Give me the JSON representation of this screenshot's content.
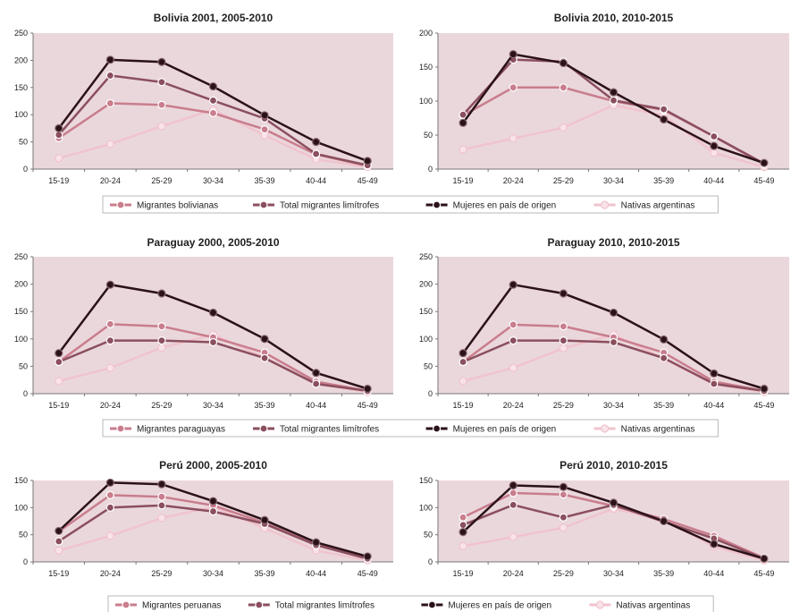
{
  "colors": {
    "plot_bg": "#ead7dc",
    "migrantes": "#c97d8d",
    "total": "#8b4f5e",
    "mujeres": "#2b1219",
    "nativas": "#f0c3cd"
  },
  "legends": {
    "bolivia": [
      "Migrantes bolivianas",
      "Total migrantes limítrofes",
      "Mujeres en país de origen",
      "Nativas argentinas"
    ],
    "paraguay": [
      "Migrantes paraguayas",
      "Total migrantes limítrofes",
      "Mujeres en país de origen",
      "Nativas argentinas"
    ],
    "peru": [
      "Migrantes peruanas",
      "Total migrantes limítrofes",
      "Mujeres en país de origen",
      "Nativas argentinas"
    ]
  },
  "chart_data": [
    {
      "type": "line",
      "title": "Bolivia 2001, 2005-2010",
      "categories": [
        "15-19",
        "20-24",
        "25-29",
        "30-34",
        "35-39",
        "40-44",
        "45-49"
      ],
      "ylim": [
        0,
        250
      ],
      "yticks": [
        0,
        50,
        100,
        150,
        200,
        250
      ],
      "grid": false,
      "series": [
        {
          "name": "Migrantes bolivianas",
          "values": [
            57,
            121,
            118,
            103,
            73,
            27,
            6
          ]
        },
        {
          "name": "Total migrantes limítrofes",
          "values": [
            63,
            172,
            160,
            126,
            93,
            28,
            7
          ]
        },
        {
          "name": "Mujeres en país de origen",
          "values": [
            75,
            201,
            197,
            152,
            99,
            50,
            15
          ]
        },
        {
          "name": "Nativas argentinas",
          "values": [
            20,
            46,
            79,
            109,
            62,
            18,
            4
          ]
        }
      ]
    },
    {
      "type": "line",
      "title": "Bolivia 2010, 2010-2015",
      "categories": [
        "15-19",
        "20-24",
        "25-29",
        "30-34",
        "35-39",
        "40-44",
        "45-49"
      ],
      "ylim": [
        0,
        200
      ],
      "yticks": [
        0,
        50,
        100,
        150,
        200
      ],
      "grid": false,
      "series": [
        {
          "name": "Migrantes bolivianas",
          "values": [
            79,
            120,
            120,
            100,
            87,
            48,
            7
          ]
        },
        {
          "name": "Total migrantes limítrofes",
          "values": [
            80,
            161,
            158,
            101,
            88,
            48,
            8
          ]
        },
        {
          "name": "Mujeres en país de origen",
          "values": [
            68,
            169,
            156,
            113,
            73,
            34,
            9
          ]
        },
        {
          "name": "Nativas argentinas",
          "values": [
            29,
            45,
            61,
            94,
            79,
            24,
            3
          ]
        }
      ]
    },
    {
      "type": "line",
      "title": "Paraguay 2000, 2005-2010",
      "categories": [
        "15-19",
        "20-24",
        "25-29",
        "30-34",
        "35-39",
        "40-44",
        "45-49"
      ],
      "ylim": [
        0,
        250
      ],
      "yticks": [
        0,
        50,
        100,
        150,
        200,
        250
      ],
      "grid": false,
      "series": [
        {
          "name": "Migrantes paraguayas",
          "values": [
            58,
            127,
            123,
            103,
            75,
            22,
            5
          ]
        },
        {
          "name": "Total migrantes limítrofes",
          "values": [
            58,
            97,
            97,
            94,
            65,
            18,
            5
          ]
        },
        {
          "name": "Mujeres en país de origen",
          "values": [
            74,
            199,
            183,
            148,
            100,
            38,
            9
          ]
        },
        {
          "name": "Nativas argentinas",
          "values": [
            23,
            47,
            84,
            108,
            66,
            18,
            3
          ]
        }
      ]
    },
    {
      "type": "line",
      "title": "Paraguay 2010, 2010-2015",
      "categories": [
        "15-19",
        "20-24",
        "25-29",
        "30-34",
        "35-39",
        "40-44",
        "45-49"
      ],
      "ylim": [
        0,
        250
      ],
      "yticks": [
        0,
        50,
        100,
        150,
        200,
        250
      ],
      "grid": false,
      "series": [
        {
          "name": "Migrantes paraguayas",
          "values": [
            58,
            126,
            123,
            103,
            75,
            22,
            5
          ]
        },
        {
          "name": "Total migrantes limítrofes",
          "values": [
            58,
            97,
            97,
            94,
            65,
            18,
            5
          ]
        },
        {
          "name": "Mujeres en país de origen",
          "values": [
            74,
            199,
            183,
            148,
            99,
            37,
            9
          ]
        },
        {
          "name": "Nativas argentinas",
          "values": [
            23,
            47,
            83,
            108,
            64,
            17,
            3
          ]
        }
      ]
    },
    {
      "type": "line",
      "title": "Perú 2000, 2005-2010",
      "categories": [
        "15-19",
        "20-24",
        "25-29",
        "30-34",
        "35-39",
        "40-44",
        "45-49"
      ],
      "ylim": [
        0,
        150
      ],
      "yticks": [
        0,
        50,
        100,
        150
      ],
      "grid": false,
      "series": [
        {
          "name": "Migrantes peruanas",
          "values": [
            56,
            123,
            120,
            104,
            72,
            32,
            7
          ]
        },
        {
          "name": "Total migrantes limítrofes",
          "values": [
            38,
            100,
            104,
            93,
            70,
            31,
            6
          ]
        },
        {
          "name": "Mujeres en país de origen",
          "values": [
            57,
            146,
            143,
            112,
            77,
            36,
            10
          ]
        },
        {
          "name": "Nativas argentinas",
          "values": [
            21,
            48,
            81,
            101,
            62,
            21,
            3
          ]
        }
      ]
    },
    {
      "type": "line",
      "title": "Perú 2010, 2010-2015",
      "categories": [
        "15-19",
        "20-24",
        "25-29",
        "30-34",
        "35-39",
        "40-44",
        "45-49"
      ],
      "ylim": [
        0,
        150
      ],
      "yticks": [
        0,
        50,
        100,
        150
      ],
      "grid": false,
      "series": [
        {
          "name": "Migrantes peruanas",
          "values": [
            82,
            127,
            124,
            103,
            79,
            48,
            7
          ]
        },
        {
          "name": "Total migrantes limítrofes",
          "values": [
            68,
            105,
            82,
            105,
            74,
            43,
            6
          ]
        },
        {
          "name": "Mujeres en país de origen",
          "values": [
            55,
            141,
            138,
            109,
            75,
            33,
            6
          ]
        },
        {
          "name": "Nativas argentinas",
          "values": [
            29,
            46,
            63,
            98,
            78,
            28,
            3
          ]
        }
      ]
    }
  ]
}
